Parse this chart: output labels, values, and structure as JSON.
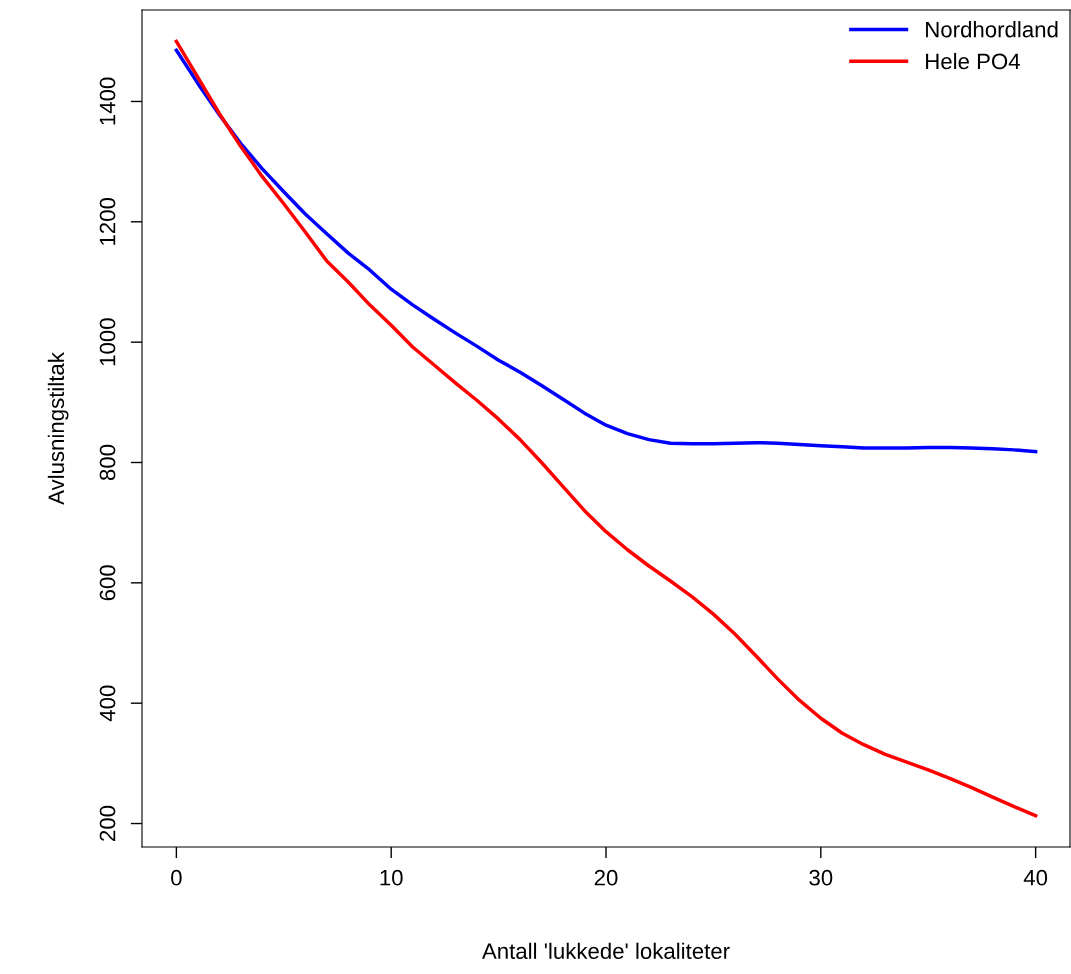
{
  "chart_data": {
    "type": "line",
    "xlabel": "Antall 'lukkede' lokaliteter",
    "ylabel": "Avlusningstiltak",
    "x": [
      0,
      1,
      2,
      3,
      4,
      5,
      6,
      7,
      8,
      9,
      10,
      11,
      12,
      13,
      14,
      15,
      16,
      17,
      18,
      19,
      20,
      21,
      22,
      23,
      24,
      25,
      26,
      27,
      28,
      29,
      30,
      31,
      32,
      33,
      34,
      35,
      36,
      37,
      38,
      39,
      40
    ],
    "series": [
      {
        "name": "Nordhordland",
        "color": "#0000ff",
        "values": [
          1485,
          1430,
          1378,
          1330,
          1288,
          1250,
          1213,
          1180,
          1148,
          1120,
          1088,
          1062,
          1038,
          1015,
          993,
          970,
          950,
          928,
          905,
          882,
          862,
          848,
          838,
          832,
          831,
          831,
          832,
          833,
          832,
          830,
          828,
          826,
          824,
          824,
          824,
          825,
          825,
          824,
          823,
          821,
          818
        ]
      },
      {
        "name": "Hele PO4",
        "color": "#ff0000",
        "values": [
          1500,
          1440,
          1380,
          1325,
          1275,
          1230,
          1183,
          1135,
          1100,
          1062,
          1028,
          992,
          962,
          932,
          903,
          872,
          838,
          800,
          760,
          720,
          685,
          655,
          628,
          603,
          577,
          548,
          515,
          478,
          440,
          405,
          375,
          350,
          331,
          315,
          302,
          289,
          275,
          260,
          244,
          228,
          213
        ]
      }
    ],
    "xlim": [
      -1.6,
      41.6
    ],
    "ylim": [
      161,
      1552
    ],
    "xticks": [
      0,
      10,
      20,
      30,
      40
    ],
    "yticks": [
      200,
      400,
      600,
      800,
      1000,
      1200,
      1400
    ],
    "legend": "top right",
    "grid": false,
    "marker": "none",
    "line_style": "solid"
  }
}
